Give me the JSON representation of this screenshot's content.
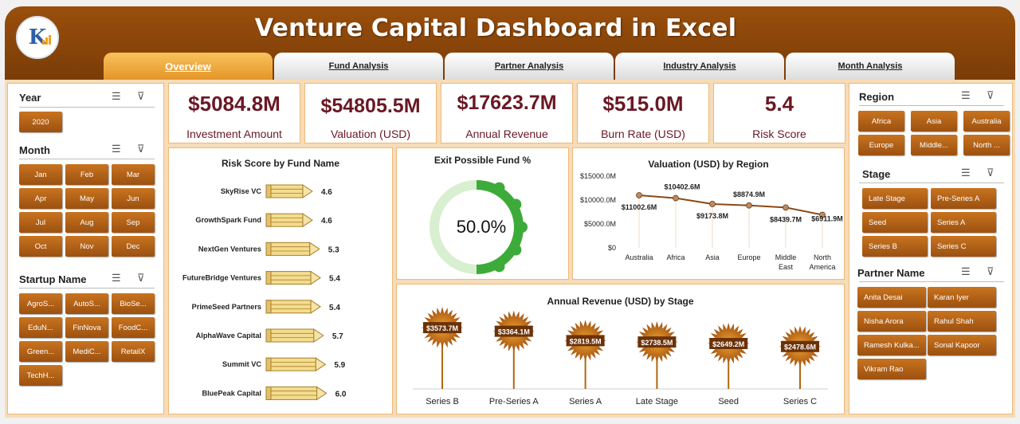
{
  "header": {
    "title": "Venture Capital Dashboard in Excel",
    "logo_letter": "K",
    "tabs": [
      {
        "label": "Overview",
        "active": true
      },
      {
        "label": "Fund Analysis",
        "active": false
      },
      {
        "label": "Partner Analysis",
        "active": false
      },
      {
        "label": "Industry Analysis",
        "active": false
      },
      {
        "label": "Month Analysis",
        "active": false
      }
    ]
  },
  "left_slicers": {
    "year": {
      "title": "Year",
      "items": [
        "2020"
      ]
    },
    "month": {
      "title": "Month",
      "items": [
        "Jan",
        "Feb",
        "Mar",
        "Apr",
        "May",
        "Jun",
        "Jul",
        "Aug",
        "Sep",
        "Oct",
        "Nov",
        "Dec"
      ]
    },
    "startup": {
      "title": "Startup Name",
      "items": [
        "AgroS...",
        "AutoS...",
        "BioSe...",
        "EduN...",
        "FinNova",
        "FoodC...",
        "Green...",
        "MediC...",
        "RetailX",
        "TechH..."
      ]
    }
  },
  "right_slicers": {
    "region": {
      "title": "Region",
      "items": [
        "Africa",
        "Asia",
        "Australia",
        "Europe",
        "Middle...",
        "North ..."
      ]
    },
    "stage": {
      "title": "Stage",
      "items": [
        "Late Stage",
        "Pre-Series A",
        "Seed",
        "Series A",
        "Series B",
        "Series C"
      ]
    },
    "partner": {
      "title": "Partner Name",
      "items": [
        "Anita Desai",
        "Karan Iyer",
        "Nisha Arora",
        "Rahul Shah",
        "Ramesh Kulka...",
        "Sonal Kapoor",
        "Vikram Rao"
      ]
    }
  },
  "kpis": [
    {
      "value": "$5084.8M",
      "label": "Investment Amount"
    },
    {
      "value": "$54805.5M",
      "label": "Valuation (USD)"
    },
    {
      "value": "$17623.7M",
      "label": "Annual Revenue"
    },
    {
      "value": "$515.0M",
      "label": "Burn Rate (USD)"
    },
    {
      "value": "5.4",
      "label": "Risk Score"
    }
  ],
  "colors": {
    "brand_brown": "#8a4509",
    "kpi_text": "#6a1824",
    "donut_green": "#3dab3a",
    "donut_track": "#d8efd0",
    "line_brown": "#8b4a17",
    "pencil_fill": "#f3dc8f"
  },
  "icons": {
    "multi_select": "multi-select-icon",
    "clear_filter": "clear-filter-icon"
  },
  "chart_data": [
    {
      "type": "bar",
      "title": "Risk Score by Fund Name",
      "orientation": "horizontal",
      "categories": [
        "SkyRise VC",
        "GrowthSpark Fund",
        "NextGen Ventures",
        "FutureBridge Ventures",
        "PrimeSeed Partners",
        "AlphaWave Capital",
        "Summit VC",
        "BluePeak Capital"
      ],
      "values": [
        4.6,
        4.6,
        5.3,
        5.4,
        5.4,
        5.7,
        5.9,
        6.0
      ],
      "labels": [
        "4.6",
        "4.6",
        "5.3",
        "5.4",
        "5.4",
        "5.7",
        "5.9",
        "6.0"
      ]
    },
    {
      "type": "pie",
      "title": "Exit Possible Fund %",
      "values": [
        50.0,
        50.0
      ],
      "center_label": "50.0%"
    },
    {
      "type": "line",
      "title": "Valuation (USD) by Region",
      "categories": [
        "Australia",
        "Africa",
        "Asia",
        "Europe",
        "Middle East",
        "North America"
      ],
      "values": [
        11002.6,
        10402.6,
        9173.8,
        8874.9,
        8439.7,
        6911.9
      ],
      "labels": [
        "$11002.6M",
        "$10402.6M",
        "$9173.8M",
        "$8874.9M",
        "$8439.7M",
        "$6911.9M"
      ],
      "y_ticks": [
        "$0",
        "$5000.0M",
        "$10000.0M",
        "$15000.0M"
      ],
      "ylim": [
        0,
        15000
      ]
    },
    {
      "type": "bar",
      "title": "Annual Revenue (USD) by Stage",
      "categories": [
        "Series B",
        "Pre-Series A",
        "Series A",
        "Late Stage",
        "Seed",
        "Series C"
      ],
      "values": [
        3573.7,
        3364.1,
        2819.5,
        2738.5,
        2649.2,
        2478.6
      ],
      "labels": [
        "$3573.7M",
        "$3364.1M",
        "$2819.5M",
        "$2738.5M",
        "$2649.2M",
        "$2478.6M"
      ]
    }
  ]
}
